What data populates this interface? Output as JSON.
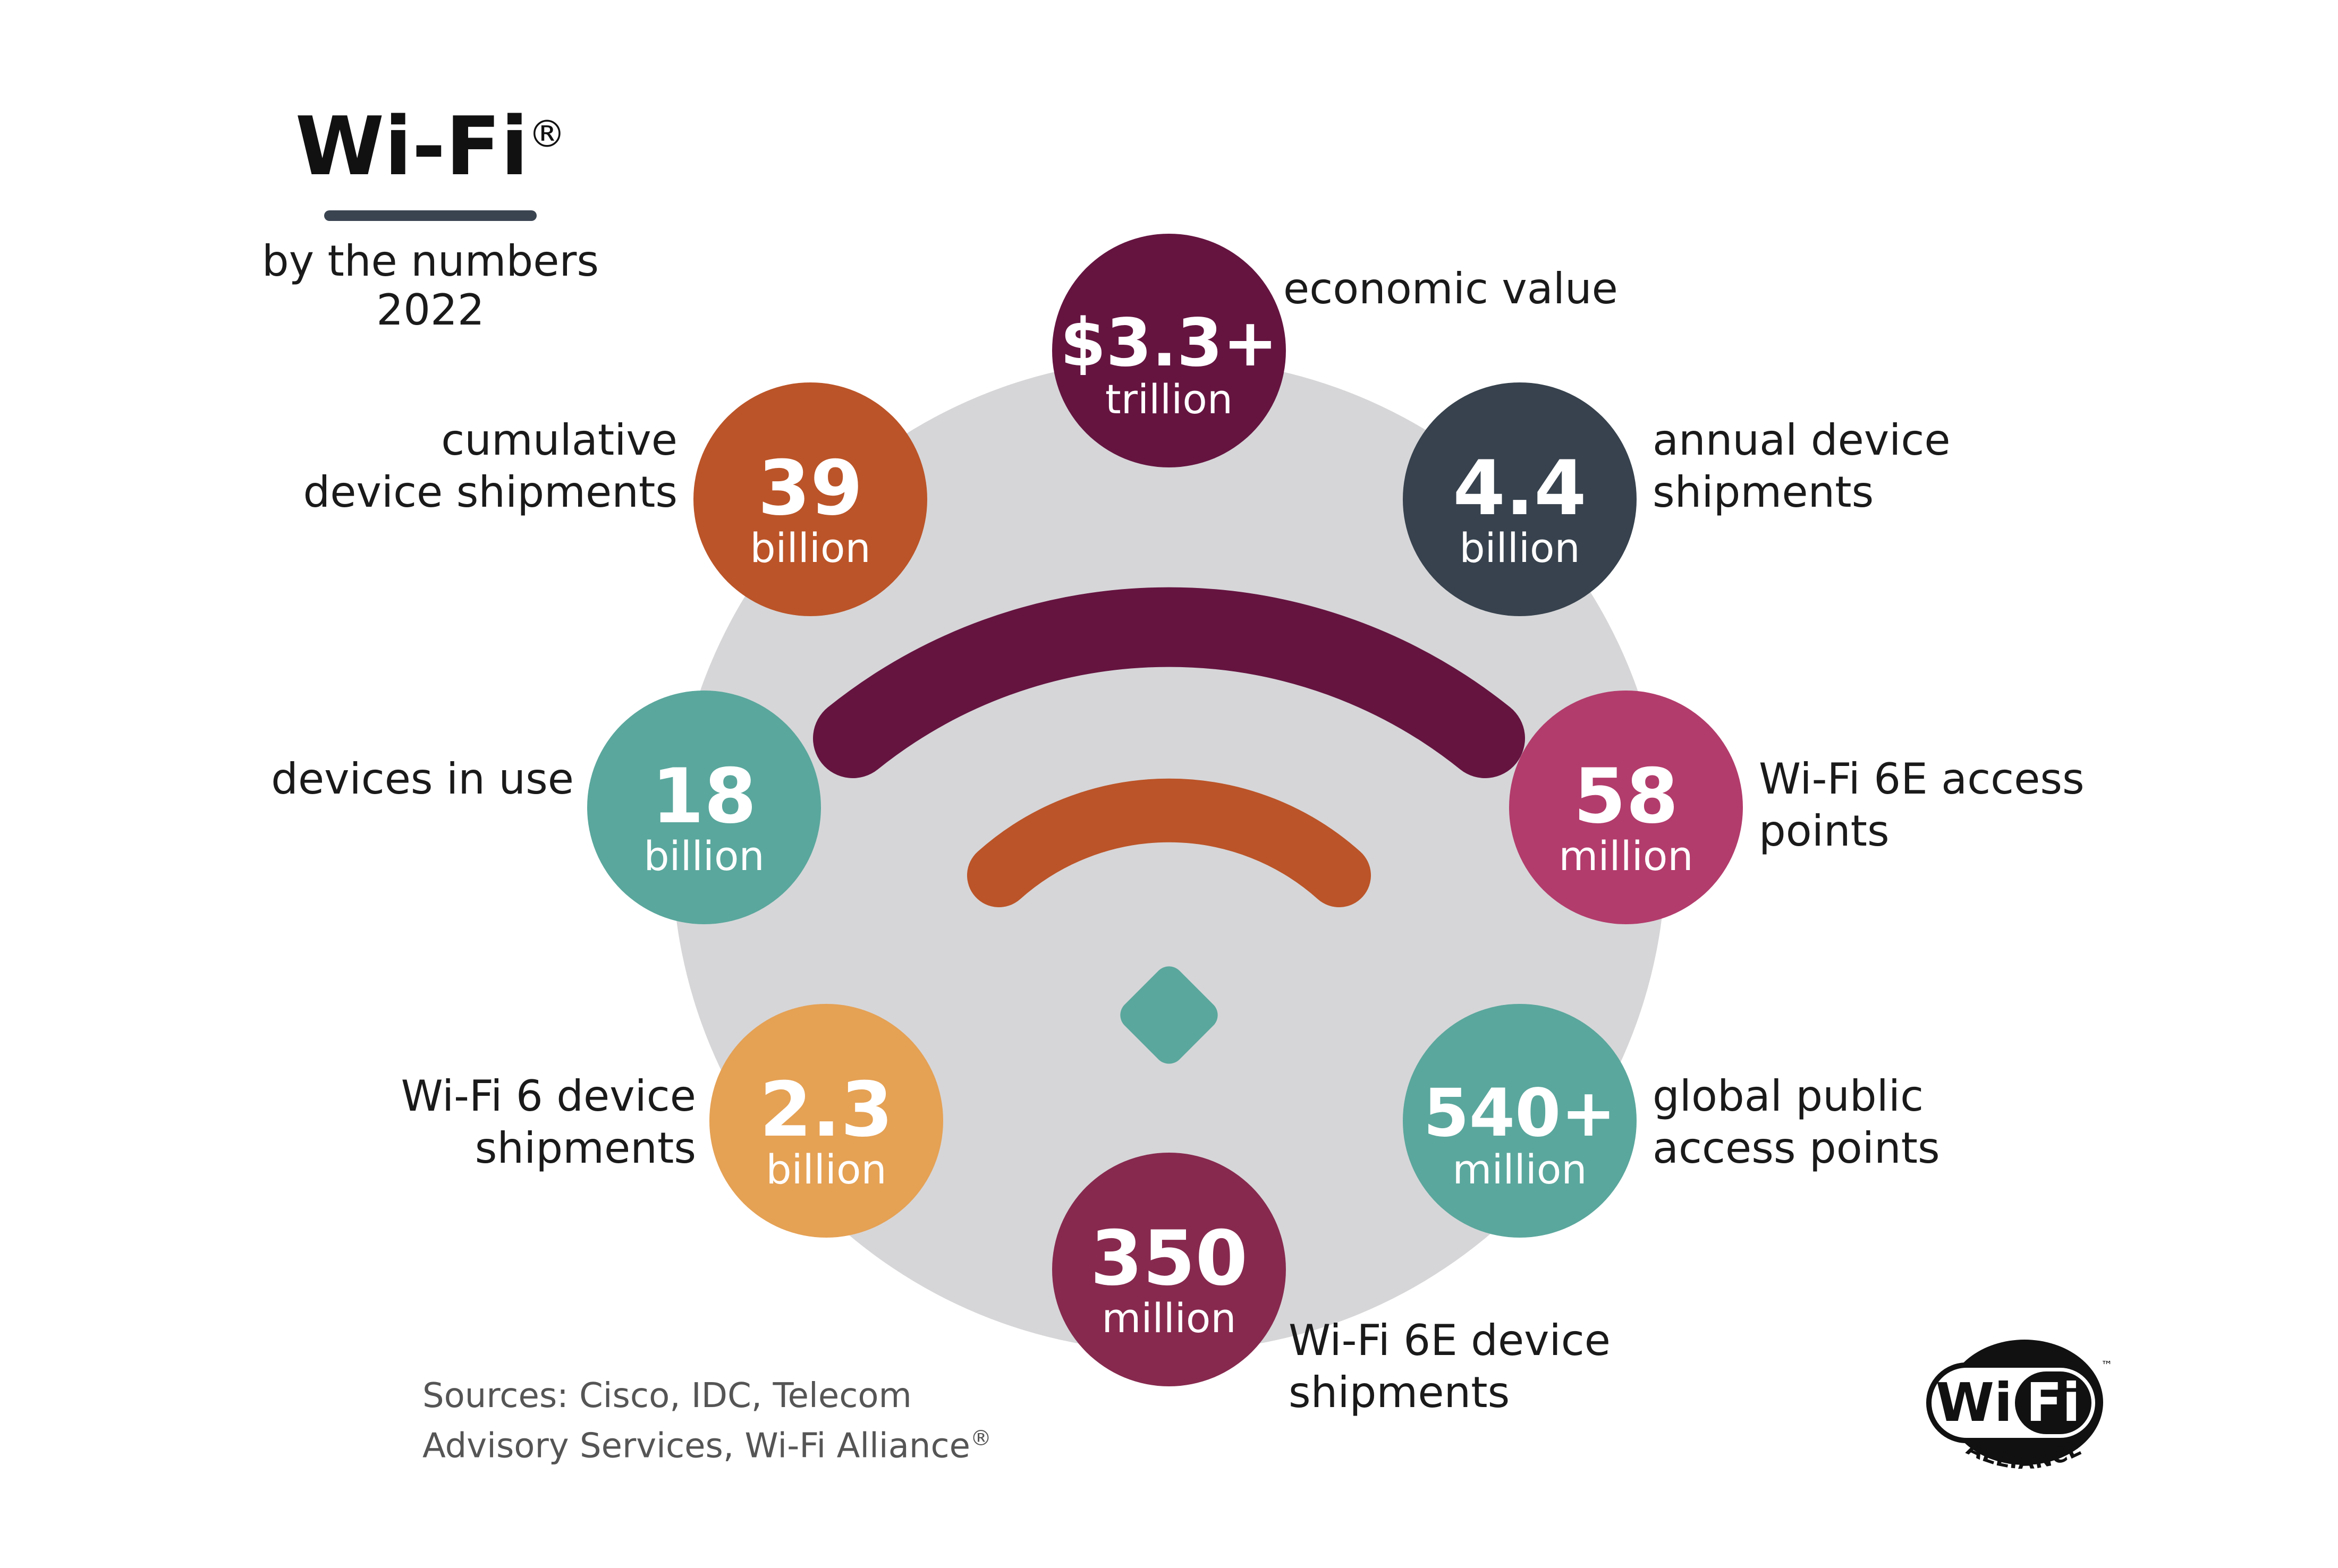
{
  "title": {
    "main": "Wi-Fi",
    "registered_mark": "®",
    "subtitle_line1": "by the numbers",
    "subtitle_line2": "2022"
  },
  "stats": [
    {
      "id": "economic-value",
      "number": "$3.3+",
      "unit": "trillion",
      "label_lines": [
        "economic value"
      ],
      "color": "#651440"
    },
    {
      "id": "annual-device-shipments",
      "number": "4.4",
      "unit": "billion",
      "label_lines": [
        "annual device",
        "shipments"
      ],
      "color": "#37424e"
    },
    {
      "id": "wifi6e-access-points",
      "number": "58",
      "unit": "million",
      "label_lines": [
        "Wi-Fi 6E access",
        "points"
      ],
      "color": "#b23c6c"
    },
    {
      "id": "global-public-access-points",
      "number": "540+",
      "unit": "million",
      "label_lines": [
        "global public",
        "access points"
      ],
      "color": "#5aa79d"
    },
    {
      "id": "wifi6e-device-shipments",
      "number": "350",
      "unit": "million",
      "label_lines": [
        "Wi-Fi 6E device",
        "shipments"
      ],
      "color": "#87294e"
    },
    {
      "id": "wifi6-device-shipments",
      "number": "2.3",
      "unit": "billion",
      "label_lines": [
        "Wi-Fi 6 device",
        "shipments"
      ],
      "color": "#e5a154"
    },
    {
      "id": "devices-in-use",
      "number": "18",
      "unit": "billion",
      "label_lines": [
        "devices in use"
      ],
      "color": "#5aa79d"
    },
    {
      "id": "cumulative-device-shipments",
      "number": "39",
      "unit": "billion",
      "label_lines": [
        "cumulative",
        "device shipments"
      ],
      "color": "#bb5428"
    }
  ],
  "sources": {
    "line1": "Sources: Cisco, IDC, Telecom",
    "line2": "Advisory Services, Wi-Fi Alliance",
    "mark": "®"
  },
  "logo": {
    "wi": "Wi",
    "fi": "Fi",
    "alliance": "ALLIANCE",
    "tm": "™"
  },
  "colors": {
    "background_disc": "#d6d6d8",
    "outer_arc": "#651440",
    "inner_arc": "#bb5428",
    "diamond": "#5aa79d",
    "title_rule": "#3a4451"
  },
  "icons": {
    "wifi_symbol": "wifi-icon",
    "logo": "wifi-alliance-logo"
  }
}
